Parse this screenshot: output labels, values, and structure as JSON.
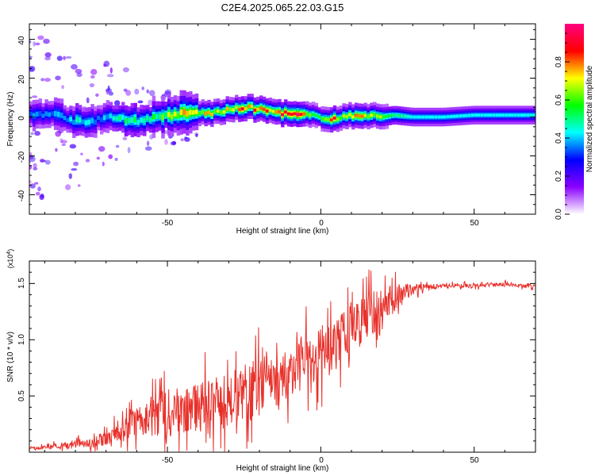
{
  "title": "C2E4.2025.065.22.03.G15",
  "chart_data": [
    {
      "type": "heatmap",
      "title": "C2E4.2025.065.22.03.G15",
      "xlabel": "Height of straight line (km)",
      "ylabel": "Frequency (Hz)",
      "xlim": [
        -95,
        70
      ],
      "ylim": [
        -50,
        48
      ],
      "x_ticks": [
        "-50",
        "0",
        "50"
      ],
      "y_ticks": [
        "40",
        "20",
        "0",
        "-20",
        "-40"
      ],
      "colorbar": {
        "label": "Normalized spectral amplitude",
        "range": [
          0,
          1
        ],
        "ticks": [
          "0.0",
          "0.2",
          "0.4",
          "0.6",
          "0.8"
        ],
        "colors": [
          "#ffffff",
          "#8b00ff",
          "#0000ff",
          "#00ffff",
          "#00ff00",
          "#ffff00",
          "#ff0000",
          "#ff0080"
        ]
      },
      "ridge": {
        "x": [
          -93,
          -88,
          -84,
          -80,
          -76,
          -72,
          -68,
          -64,
          -60,
          -56,
          -52,
          -48,
          -44,
          -40,
          -36,
          -32,
          -28,
          -24,
          -20,
          -16,
          -12,
          -8,
          -4,
          0,
          4,
          8,
          12,
          16,
          20,
          24,
          30,
          40,
          50,
          60,
          70
        ],
        "freq_hz": [
          1,
          2,
          0,
          -2,
          -3,
          -1,
          0,
          -1,
          -2,
          -1,
          0,
          1,
          2,
          2,
          2,
          3,
          4,
          5,
          4,
          3,
          2,
          1,
          1,
          0,
          -1,
          0,
          1,
          1,
          0,
          1,
          0,
          0,
          1,
          1,
          1
        ],
        "peak_amplitude": [
          0.35,
          0.4,
          0.4,
          0.45,
          0.45,
          0.4,
          0.45,
          0.5,
          0.5,
          0.55,
          0.6,
          0.7,
          0.75,
          0.7,
          0.75,
          0.75,
          0.8,
          0.85,
          0.8,
          0.85,
          0.85,
          0.95,
          0.7,
          0.55,
          0.9,
          0.6,
          0.75,
          0.7,
          0.6,
          0.55,
          0.45,
          0.45,
          0.45,
          0.45,
          0.45
        ]
      }
    },
    {
      "type": "line",
      "xlabel": "Height of straight line (km)",
      "ylabel": "SNR (10 * v/v)",
      "y_multiplier": "(x10",
      "y_multiplier_exp": "4",
      "y_multiplier_close": ")",
      "xlim": [
        -95,
        70
      ],
      "ylim": [
        0,
        1.7
      ],
      "x_ticks": [
        "-50",
        "0",
        "50"
      ],
      "y_ticks": [
        "0.5",
        "1.0",
        "1.5"
      ],
      "line_color": "#e8302a",
      "series": [
        {
          "x": [
            -95,
            -90,
            -85,
            -80,
            -75,
            -70,
            -65,
            -60,
            -55,
            -50,
            -45,
            -40,
            -35,
            -30,
            -25,
            -20,
            -15,
            -10,
            -5,
            0,
            5,
            10,
            15,
            20,
            25,
            30,
            35,
            40,
            45,
            50,
            55,
            60,
            65,
            70
          ],
          "y": [
            0.03,
            0.04,
            0.06,
            0.08,
            0.08,
            0.12,
            0.2,
            0.28,
            0.32,
            0.36,
            0.36,
            0.4,
            0.44,
            0.46,
            0.52,
            0.58,
            0.6,
            0.7,
            0.82,
            0.88,
            0.95,
            1.1,
            1.2,
            1.3,
            1.4,
            1.45,
            1.47,
            1.48,
            1.48,
            1.48,
            1.49,
            1.49,
            1.48,
            1.48
          ],
          "spread": [
            0.02,
            0.03,
            0.04,
            0.06,
            0.06,
            0.1,
            0.15,
            0.22,
            0.3,
            0.4,
            0.32,
            0.36,
            0.4,
            0.42,
            0.45,
            0.46,
            0.42,
            0.4,
            0.42,
            0.42,
            0.4,
            0.4,
            0.35,
            0.28,
            0.18,
            0.08,
            0.04,
            0.03,
            0.03,
            0.03,
            0.03,
            0.03,
            0.03,
            0.03
          ]
        }
      ]
    }
  ]
}
